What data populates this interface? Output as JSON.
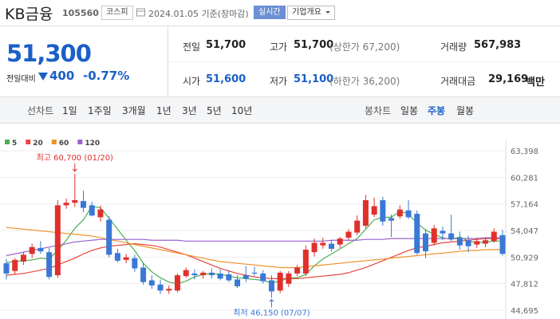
{
  "header": {
    "name": "KB금융",
    "code": "105560",
    "market": "코스피",
    "date": "2024.01.05 기준(장마감)",
    "realtime": "실시간",
    "company": "기업개요"
  },
  "quote": {
    "price": "51,300",
    "change_label": "전일대비",
    "change": "400",
    "change_rate": "-0.77%",
    "stats": [
      {
        "label": "전일",
        "value": "51,700"
      },
      {
        "label": "고가",
        "value": "51,700",
        "note": "(상한가 67,200)"
      },
      {
        "label": "거래량",
        "value": "567,983"
      },
      {
        "label": "시가",
        "value": "51,600"
      },
      {
        "label": "저가",
        "value": "51,100",
        "note": "(하한가 36,200)"
      },
      {
        "label": "거래대금",
        "value": "29,169",
        "unit": "백만"
      }
    ]
  },
  "tabs": {
    "line_label": "선차트",
    "line_periods": [
      "1일",
      "1주일",
      "3개월",
      "1년",
      "3년",
      "5년",
      "10년"
    ],
    "candle_label": "봉차트",
    "candle_periods": [
      "일봉",
      "주봉",
      "월봉"
    ]
  },
  "chart_data": {
    "type": "candlestick",
    "up_color": "#e0302c",
    "down_color": "#3a78d6",
    "ylim": [
      44695,
      63398
    ],
    "yticks": [
      {
        "value": 63398,
        "label": "63,398"
      },
      {
        "value": 60281,
        "label": "60,281"
      },
      {
        "value": 57164,
        "label": "57,164"
      },
      {
        "value": 54047,
        "label": "54,047"
      },
      {
        "value": 50929,
        "label": "50,929"
      },
      {
        "value": 47812,
        "label": "47,812"
      },
      {
        "value": 44695,
        "label": "44,695"
      }
    ],
    "grid": true,
    "high_label": "최고 60,700 (01/20)",
    "low_label": "최저 46,150 (07/07)",
    "open": [
      50200,
      49300,
      50400,
      51300,
      52000,
      51500,
      48800,
      57000,
      57300,
      57500,
      57000,
      55600,
      55300,
      51400,
      50600,
      50800,
      49700,
      48200,
      47700,
      47000,
      47000,
      48700,
      49000,
      48800,
      49100,
      49000,
      48900,
      48300,
      48800,
      49100,
      49000,
      48200,
      47000,
      47800,
      49000,
      49000,
      51500,
      52300,
      52500,
      52400,
      53200,
      53800,
      54600,
      55900,
      57600,
      55500,
      55700,
      56400,
      56000,
      53700,
      52600,
      54000,
      53700,
      53200,
      52900,
      52400,
      52500,
      52800,
      53500
    ],
    "high": [
      50700,
      50800,
      51500,
      52500,
      52800,
      52000,
      57600,
      57800,
      60700,
      58700,
      57400,
      57000,
      55700,
      51900,
      51300,
      51200,
      50300,
      48800,
      48300,
      47600,
      49000,
      49700,
      49500,
      49300,
      49600,
      49500,
      49400,
      48800,
      49900,
      49800,
      49400,
      48800,
      49300,
      49300,
      50000,
      52300,
      53100,
      53200,
      52900,
      53300,
      54200,
      55800,
      58200,
      57900,
      58000,
      55900,
      57000,
      57600,
      56400,
      54200,
      54700,
      54500,
      55900,
      53900,
      53400,
      53200,
      53200,
      54300,
      54100
    ],
    "low": [
      48300,
      48900,
      50000,
      50800,
      51300,
      48300,
      48500,
      56600,
      56800,
      56200,
      55700,
      55100,
      50900,
      50300,
      50200,
      49200,
      47700,
      47200,
      46600,
      46600,
      46800,
      48500,
      48300,
      48400,
      48400,
      48200,
      48000,
      47300,
      48000,
      48700,
      47800,
      46150,
      46700,
      47400,
      48700,
      48700,
      51000,
      51900,
      51600,
      52000,
      52800,
      53500,
      54300,
      55600,
      54600,
      53300,
      55400,
      55400,
      51200,
      50800,
      52300,
      52900,
      52800,
      51800,
      51500,
      52000,
      52100,
      52600,
      51100
    ],
    "close": [
      49000,
      50600,
      51200,
      52100,
      51600,
      48600,
      57000,
      57300,
      57600,
      56700,
      55800,
      56500,
      51200,
      50500,
      50900,
      49600,
      48000,
      47600,
      47000,
      47200,
      48800,
      49400,
      48800,
      49100,
      48800,
      48400,
      48200,
      47500,
      48400,
      49000,
      48100,
      46900,
      49100,
      49000,
      49700,
      51800,
      52600,
      52600,
      51900,
      53100,
      53900,
      55200,
      57600,
      56900,
      55100,
      55200,
      56500,
      55600,
      51400,
      51600,
      54300,
      53700,
      53000,
      52300,
      52200,
      52800,
      52900,
      53900,
      51300
    ],
    "series": [
      {
        "name": "5",
        "color": "#4caf50",
        "values": [
          50300,
          50400,
          50500,
          50600,
          50800,
          50700,
          51700,
          52900,
          54300,
          55300,
          56900,
          56700,
          55500,
          54200,
          52900,
          51700,
          50200,
          49200,
          48500,
          48000,
          47800,
          48100,
          48600,
          48900,
          49000,
          48900,
          48700,
          48500,
          48400,
          48300,
          48200,
          47900,
          48100,
          48500,
          48500,
          48900,
          49900,
          50700,
          51300,
          51900,
          52500,
          53100,
          54200,
          55300,
          55600,
          55600,
          56300,
          56000,
          54900,
          54100,
          53600,
          53200,
          53000,
          53300,
          52800,
          52600,
          52700,
          52800,
          52800
        ]
      },
      {
        "name": "20",
        "color": "#e8473b",
        "values": [
          48800,
          48900,
          49000,
          49200,
          49400,
          49600,
          50000,
          50400,
          50800,
          51300,
          51700,
          52000,
          52200,
          52300,
          52400,
          52500,
          52400,
          52300,
          52100,
          51800,
          51500,
          51200,
          50800,
          50400,
          50000,
          49600,
          49300,
          49000,
          48800,
          48600,
          48500,
          48400,
          48400,
          48400,
          48400,
          48500,
          48600,
          48700,
          48800,
          48900,
          49100,
          49400,
          49700,
          50100,
          50500,
          50900,
          51300,
          51700,
          52000,
          52200,
          52400,
          52600,
          52700,
          52800,
          52900,
          53000,
          53100,
          53100,
          53100
        ]
      },
      {
        "name": "60",
        "color": "#f0922b",
        "values": [
          54400,
          54300,
          54200,
          54100,
          54000,
          53900,
          53800,
          53700,
          53600,
          53500,
          53400,
          53200,
          53000,
          52800,
          52600,
          52400,
          52200,
          52000,
          51800,
          51600,
          51400,
          51200,
          51000,
          50800,
          50600,
          50400,
          50300,
          50200,
          50100,
          50000,
          49900,
          49800,
          49700,
          49700,
          49700,
          49800,
          49900,
          50000,
          50100,
          50200,
          50300,
          50400,
          50500,
          50600,
          50700,
          50800,
          50900,
          51000,
          51100,
          51200,
          51300,
          51400,
          51500,
          51600,
          51700,
          51700,
          51800,
          51800,
          51800
        ]
      },
      {
        "name": "120",
        "color": "#9a63d0",
        "values": [
          51100,
          51300,
          51500,
          51700,
          51900,
          52100,
          52300,
          52500,
          52700,
          52800,
          52900,
          53000,
          53000,
          53000,
          53000,
          53000,
          53000,
          52900,
          52900,
          52900,
          52900,
          52800,
          52800,
          52800,
          52800,
          52800,
          52800,
          52800,
          52800,
          52800,
          52800,
          52800,
          52800,
          52800,
          52800,
          52800,
          52800,
          52800,
          52900,
          52900,
          52900,
          52900,
          53000,
          53000,
          53000,
          53100,
          53100,
          53100,
          53100,
          53100,
          53100,
          53100,
          53100,
          53100,
          53100,
          53100,
          53200,
          53200,
          53200
        ]
      }
    ]
  }
}
